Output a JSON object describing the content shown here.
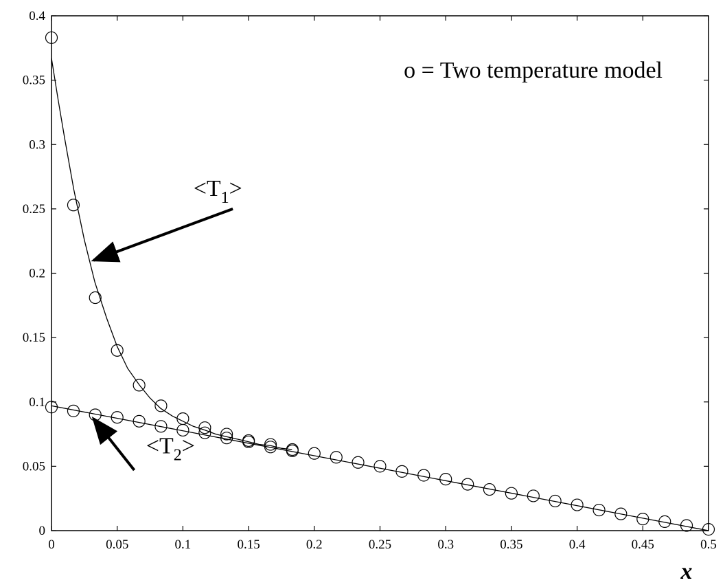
{
  "chart_data": {
    "type": "scatter",
    "xlabel": "x",
    "ylabel": "",
    "xlim": [
      0,
      0.5
    ],
    "ylim": [
      0,
      0.4
    ],
    "xticks": [
      "0",
      "0.05",
      "0.1",
      "0.15",
      "0.2",
      "0.25",
      "0.3",
      "0.35",
      "0.4",
      "0.45",
      "0.5"
    ],
    "yticks": [
      "0",
      "0.05",
      "0.1",
      "0.15",
      "0.2",
      "0.25",
      "0.3",
      "0.35",
      "0.4"
    ],
    "grid": false,
    "legend_text": "o = Two temperature model",
    "legend_position": "top-right",
    "series": [
      {
        "name": "<T₁>",
        "line": {
          "x": [
            0,
            0.005,
            0.01,
            0.017,
            0.025,
            0.033,
            0.042,
            0.05,
            0.058,
            0.067,
            0.075,
            0.083,
            0.092,
            0.1,
            0.108,
            0.117,
            0.125,
            0.133,
            0.142,
            0.15,
            0.158,
            0.167,
            0.175,
            0.183
          ],
          "y": [
            0.367,
            0.335,
            0.305,
            0.265,
            0.226,
            0.193,
            0.165,
            0.143,
            0.126,
            0.113,
            0.103,
            0.095,
            0.089,
            0.085,
            0.081,
            0.078,
            0.075,
            0.073,
            0.071,
            0.069,
            0.067,
            0.066,
            0.064,
            0.063
          ]
        },
        "markers": {
          "x": [
            0,
            0.0167,
            0.0333,
            0.05,
            0.0667,
            0.0833,
            0.1,
            0.1167,
            0.1333,
            0.15,
            0.1667,
            0.1833
          ],
          "y": [
            0.383,
            0.253,
            0.181,
            0.14,
            0.113,
            0.097,
            0.087,
            0.08,
            0.075,
            0.07,
            0.067,
            0.063
          ]
        }
      },
      {
        "name": "<T₂>",
        "line": {
          "x": [
            0,
            0.5
          ],
          "y": [
            0.097,
            0
          ]
        },
        "markers": {
          "x": [
            0,
            0.0167,
            0.0333,
            0.05,
            0.0667,
            0.0833,
            0.1,
            0.1167,
            0.1333,
            0.15,
            0.1667,
            0.1833,
            0.2,
            0.2167,
            0.2333,
            0.25,
            0.2667,
            0.2833,
            0.3,
            0.3167,
            0.3333,
            0.35,
            0.3667,
            0.3833,
            0.4,
            0.4167,
            0.4333,
            0.45,
            0.4667,
            0.4833,
            0.5
          ],
          "y": [
            0.096,
            0.093,
            0.09,
            0.088,
            0.085,
            0.081,
            0.078,
            0.076,
            0.072,
            0.069,
            0.065,
            0.062,
            0.06,
            0.057,
            0.053,
            0.05,
            0.046,
            0.043,
            0.04,
            0.036,
            0.032,
            0.029,
            0.027,
            0.023,
            0.02,
            0.016,
            0.013,
            0.009,
            0.007,
            0.004,
            0.001
          ]
        }
      }
    ],
    "annotations": [
      {
        "label_main": "<T",
        "label_sub": "1",
        "label_end": ">",
        "text_x": 0.108,
        "text_y": 0.26,
        "arrow_from": [
          0.138,
          0.25
        ],
        "arrow_to": [
          0.032,
          0.21
        ]
      },
      {
        "label_main": "<T",
        "label_sub": "2",
        "label_end": ">",
        "text_x": 0.072,
        "text_y": 0.06,
        "arrow_from": [
          0.063,
          0.047
        ],
        "arrow_to": [
          0.032,
          0.087
        ]
      }
    ]
  }
}
